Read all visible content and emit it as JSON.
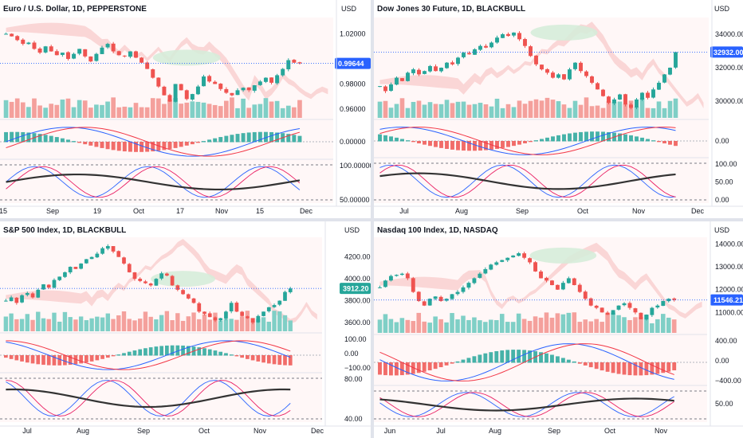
{
  "colors": {
    "up": "#26a69a",
    "down": "#ef5350",
    "vol_up": "#7fcfc6",
    "vol_down": "#f4a09c",
    "cloud_red": "#f9d0d0",
    "cloud_green": "#d6ecd9",
    "macd": "#2962ff",
    "signal": "#f23645",
    "stoch_k": "#2962ff",
    "stoch_d": "#e91e63",
    "rsi": "#333333",
    "price_label_blue": "#2962ff",
    "bg_tint": "#fdf0f0"
  },
  "panels": [
    {
      "title": "Euro / U.S. Dollar, 1D, PEPPERSTONE",
      "currency": "USD",
      "last_price": "0.99644",
      "price_ticks": [
        "1.02000",
        "0.98000",
        "0.96000"
      ],
      "macd_ticks": [
        "0.00000"
      ],
      "osc_ticks": [
        "100.00000",
        "50.00000"
      ],
      "time_labels": [
        "15",
        "Sep",
        "19",
        "Oct",
        "17",
        "Nov",
        "15",
        "Dec"
      ]
    },
    {
      "title": "Dow Jones 30 Future, 1D, BLACKBULL",
      "currency": "USD",
      "last_price": "32932.00",
      "price_ticks": [
        "34000.00",
        "32000.00",
        "30000.00"
      ],
      "macd_ticks": [
        "0.00"
      ],
      "osc_ticks": [
        "100.00",
        "50.00",
        "0.00"
      ],
      "time_labels": [
        "Jul",
        "Aug",
        "Sep",
        "Oct",
        "Nov",
        "Dec"
      ]
    },
    {
      "title": "S&P 500 Index, 1D, BLACKBULL",
      "currency": "USD",
      "last_price": "3912.20",
      "price_ticks": [
        "4200.00",
        "4000.00",
        "3800.00",
        "3600.00"
      ],
      "macd_ticks": [
        "100.00",
        "0.00",
        "−100.00"
      ],
      "osc_ticks": [
        "80.00",
        "40.00"
      ],
      "time_labels": [
        "Jul",
        "Aug",
        "Sep",
        "Oct",
        "Nov",
        "Dec"
      ]
    },
    {
      "title": "Nasdaq 100 Index, 1D, NASDAQ",
      "currency": "USD",
      "last_price": "11546.21",
      "price_ticks": [
        "14000.00",
        "13000.00",
        "12000.00",
        "11000.00"
      ],
      "macd_ticks": [
        "400.00",
        "0.00",
        "−400.00"
      ],
      "osc_ticks": [
        "50.00"
      ],
      "time_labels": [
        "Jun",
        "Jul",
        "Aug",
        "Sep",
        "Oct",
        "Nov"
      ]
    }
  ],
  "chart_data": [
    {
      "type": "candlestick",
      "title": "Euro / U.S. Dollar, 1D, PEPPERSTONE",
      "y_unit": "USD",
      "last": 0.99644,
      "ylim": [
        0.953,
        1.033
      ],
      "series": [
        {
          "name": "close",
          "values": [
            1.02,
            1.018,
            1.015,
            1.012,
            1.013,
            1.008,
            1.005,
            1.01,
            1.006,
            1.003,
            1.005,
            1.0,
            1.004,
            1.008,
            1.002,
            0.998,
            1.004,
            1.009,
            1.012,
            1.006,
            1.003,
            1.002,
            1.006,
            1.001,
            0.997,
            0.992,
            0.985,
            0.978,
            0.971,
            0.966,
            0.98,
            0.975,
            0.968,
            0.972,
            0.978,
            0.986,
            0.982,
            0.98,
            0.976,
            0.973,
            0.971,
            0.975,
            0.977,
            0.975,
            0.979,
            0.982,
            0.985,
            0.981,
            0.987,
            0.992,
            0.999,
            0.997,
            0.99644
          ]
        }
      ]
    },
    {
      "type": "candlestick",
      "title": "Dow Jones 30 Future, 1D, BLACKBULL",
      "y_unit": "USD",
      "last": 32932.0,
      "ylim": [
        29000,
        35000
      ],
      "series": [
        {
          "name": "close",
          "values": [
            30900,
            30600,
            31000,
            31400,
            31200,
            31700,
            31900,
            31600,
            31800,
            32100,
            31800,
            32000,
            32300,
            32200,
            32600,
            32900,
            32800,
            33100,
            33300,
            33200,
            33500,
            33800,
            34000,
            33900,
            34100,
            33700,
            33300,
            32700,
            32200,
            31900,
            31700,
            31400,
            31600,
            31300,
            31900,
            32300,
            31800,
            31500,
            31100,
            30700,
            30300,
            29900,
            30100,
            30400,
            29800,
            29600,
            30100,
            30500,
            30200,
            30700,
            31100,
            31600,
            32000,
            32932
          ]
        }
      ]
    },
    {
      "type": "candlestick",
      "title": "S&P 500 Index, 1D, BLACKBULL",
      "y_unit": "USD",
      "last": 3912.2,
      "ylim": [
        3520,
        4380
      ],
      "series": [
        {
          "name": "close",
          "values": [
            3800,
            3830,
            3780,
            3850,
            3870,
            3830,
            3900,
            3950,
            3920,
            3990,
            4020,
            4060,
            4110,
            4090,
            4140,
            4180,
            4200,
            4230,
            4280,
            4300,
            4250,
            4200,
            4140,
            4060,
            4000,
            3980,
            3960,
            3940,
            4000,
            4050,
            4030,
            3940,
            3900,
            3860,
            3820,
            3780,
            3700,
            3680,
            3650,
            3620,
            3640,
            3700,
            3780,
            3700,
            3660,
            3640,
            3600,
            3660,
            3700,
            3740,
            3760,
            3800,
            3880,
            3912
          ]
        }
      ]
    },
    {
      "type": "candlestick",
      "title": "Nasdaq 100 Index, 1D, NASDAQ",
      "y_unit": "USD",
      "last": 11546.21,
      "ylim": [
        10100,
        14300
      ],
      "series": [
        {
          "name": "close",
          "values": [
            12100,
            12400,
            12600,
            12650,
            12700,
            12500,
            11900,
            11500,
            11300,
            11600,
            11700,
            11500,
            11600,
            11800,
            11900,
            12100,
            12300,
            12500,
            12700,
            12900,
            13100,
            13200,
            13300,
            13400,
            13500,
            13600,
            13400,
            13200,
            12800,
            12500,
            12400,
            12200,
            12000,
            12300,
            12500,
            12200,
            11900,
            11600,
            11300,
            11200,
            11000,
            10900,
            11100,
            11300,
            11400,
            11200,
            11000,
            10700,
            10900,
            11200,
            11300,
            11500,
            11600,
            11546
          ]
        }
      ]
    }
  ]
}
